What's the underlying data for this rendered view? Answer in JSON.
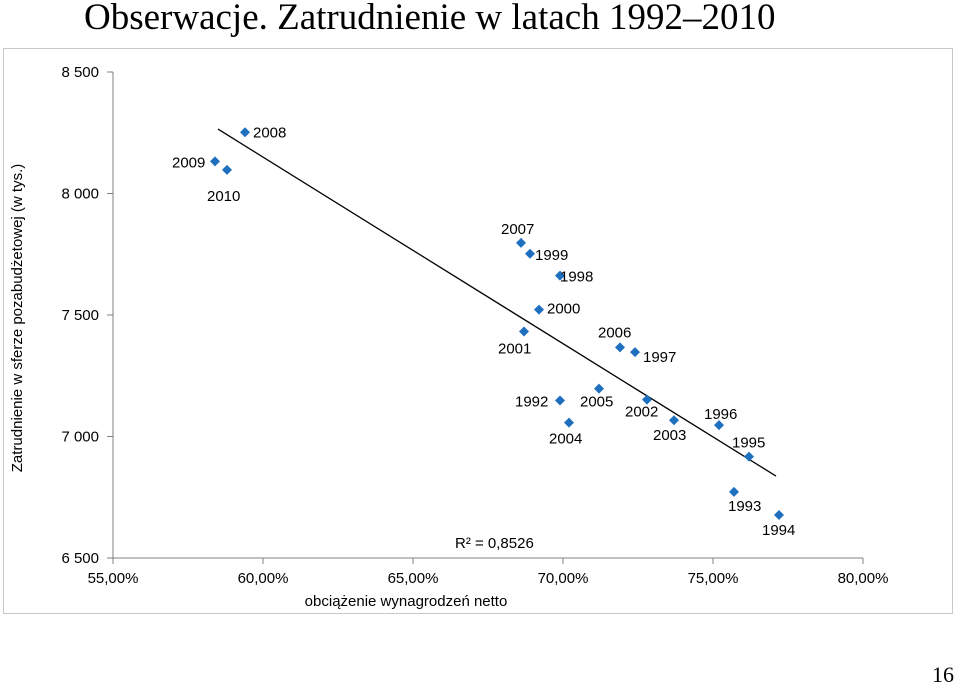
{
  "page": {
    "title": "Obserwacje. Zatrudnienie w latach 1992–2010",
    "page_number": "16"
  },
  "chart_data": {
    "type": "scatter",
    "title": "",
    "xlabel": "obciążenie wynagrodzeń netto",
    "ylabel": "Zatrudnienie w sferze pozabudżetowej (w tys.)",
    "xlim": [
      55,
      80
    ],
    "ylim": [
      6500,
      8500
    ],
    "x_ticks": [
      "55,00%",
      "60,00%",
      "65,00%",
      "70,00%",
      "75,00%",
      "80,00%"
    ],
    "y_ticks": [
      "6 500",
      "7 000",
      "7 500",
      "8 000",
      "8 500"
    ],
    "marker_color": "#1f6fbf",
    "points": [
      {
        "label": "1992",
        "x": 69.9,
        "y": 7148
      },
      {
        "label": "1993",
        "x": 75.7,
        "y": 6772
      },
      {
        "label": "1994",
        "x": 77.2,
        "y": 6677
      },
      {
        "label": "1995",
        "x": 76.2,
        "y": 6917
      },
      {
        "label": "1996",
        "x": 75.2,
        "y": 7047
      },
      {
        "label": "1997",
        "x": 72.4,
        "y": 7347
      },
      {
        "label": "1998",
        "x": 69.9,
        "y": 7662
      },
      {
        "label": "1999",
        "x": 68.9,
        "y": 7752
      },
      {
        "label": "2000",
        "x": 69.2,
        "y": 7522
      },
      {
        "label": "2001",
        "x": 68.7,
        "y": 7432
      },
      {
        "label": "2002",
        "x": 72.8,
        "y": 7152
      },
      {
        "label": "2003",
        "x": 73.7,
        "y": 7067
      },
      {
        "label": "2004",
        "x": 70.2,
        "y": 7057
      },
      {
        "label": "2005",
        "x": 71.2,
        "y": 7197
      },
      {
        "label": "2006",
        "x": 71.9,
        "y": 7367
      },
      {
        "label": "2007",
        "x": 68.6,
        "y": 7797
      },
      {
        "label": "2008",
        "x": 59.4,
        "y": 8252
      },
      {
        "label": "2009",
        "x": 58.4,
        "y": 8132
      },
      {
        "label": "2010",
        "x": 58.8,
        "y": 8097
      }
    ],
    "trendline": {
      "from": [
        58.5,
        8265
      ],
      "to": [
        77.1,
        6837
      ],
      "r2_label": "R² = 0,8526"
    },
    "grid": false,
    "legend": "none"
  }
}
